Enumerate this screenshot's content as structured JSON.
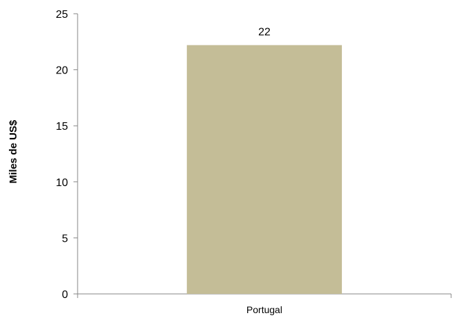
{
  "chart_data": {
    "type": "bar",
    "categories": [
      "Portugal"
    ],
    "values": [
      22.2
    ],
    "data_labels": [
      "22"
    ],
    "title": "",
    "xlabel": "",
    "ylabel": "Miles de US$",
    "ylim": [
      0,
      25
    ],
    "yticks": [
      0,
      5,
      10,
      15,
      20,
      25
    ],
    "grid": false,
    "legend": "none",
    "bar_color": "#c4bd97",
    "axis_color": "#868686"
  }
}
